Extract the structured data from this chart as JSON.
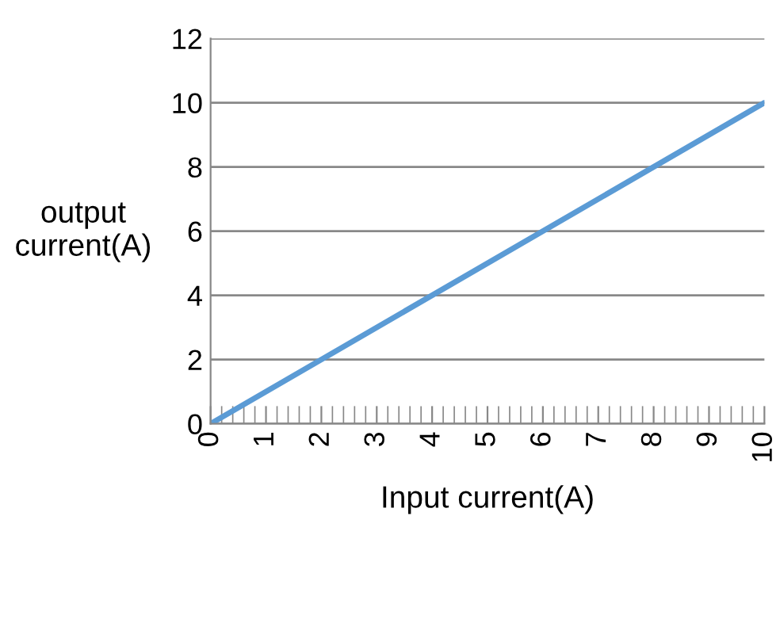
{
  "chart_data": {
    "type": "line",
    "xlabel": "Input current(A)",
    "ylabel": "output current(A)",
    "x": [
      0,
      10
    ],
    "series": [
      {
        "color": "#5b9bd5",
        "values": [
          0,
          10
        ]
      }
    ],
    "xlim": [
      0,
      10
    ],
    "xticks": [
      0,
      1,
      2,
      3,
      4,
      5,
      6,
      7,
      8,
      9,
      10
    ],
    "ylim": [
      0,
      12
    ],
    "yticks": [
      0,
      2,
      4,
      6,
      8,
      10,
      12
    ],
    "grid": "y",
    "legend": false,
    "marker": "none",
    "line_style": "solid"
  }
}
